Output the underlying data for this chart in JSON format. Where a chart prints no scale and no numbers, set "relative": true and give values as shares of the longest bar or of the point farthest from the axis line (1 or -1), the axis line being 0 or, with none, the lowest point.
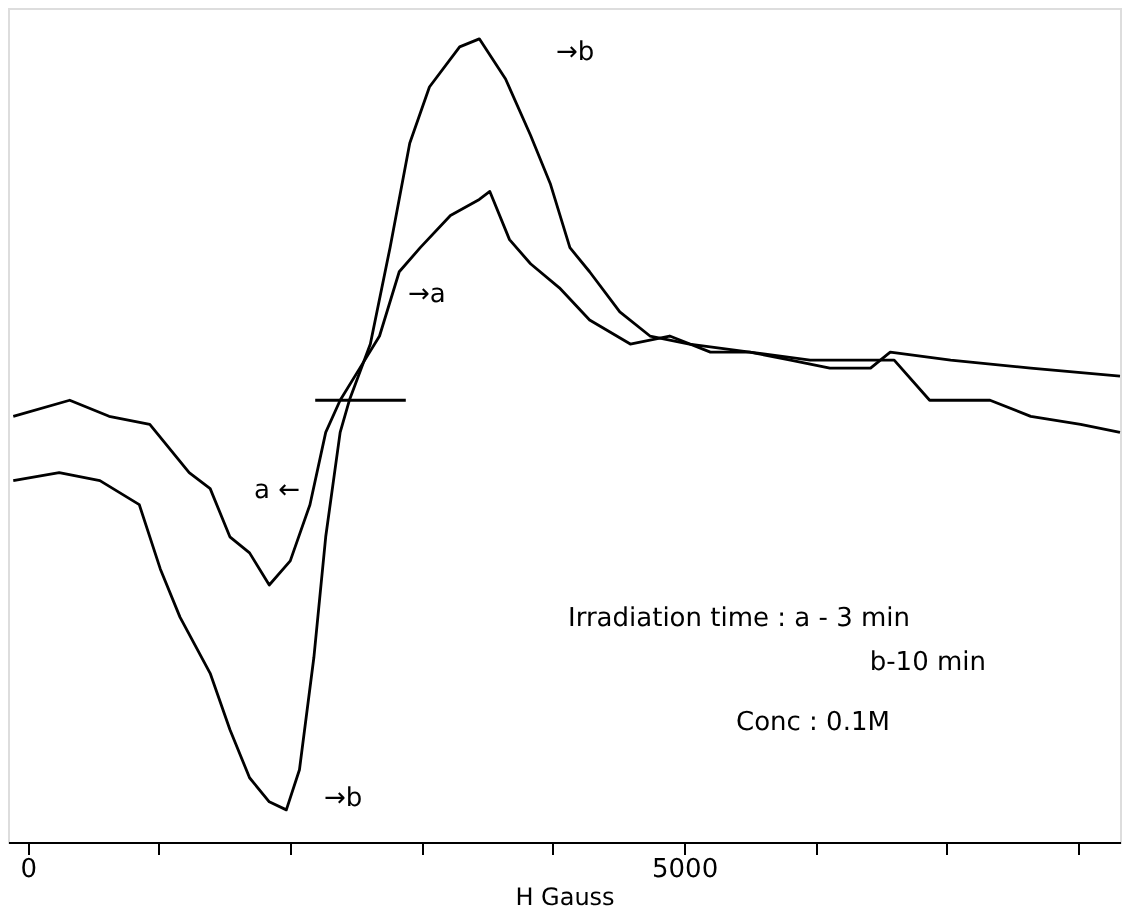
{
  "chart_data": {
    "type": "line",
    "relative": true,
    "xlabel": "H      Gauss",
    "xlim": [
      -150,
      8320
    ],
    "xticks": [
      0,
      {
        "value": 1000,
        "label": null
      },
      {
        "value": 2000,
        "label": null
      },
      {
        "value": 3000,
        "label": null
      },
      {
        "value": 4000,
        "label": null
      },
      5000,
      {
        "value": 6000,
        "label": null
      },
      {
        "value": 7000,
        "label": null
      },
      {
        "value": 8000,
        "label": null
      }
    ],
    "grid": false,
    "marker": "none",
    "line_style": "solid",
    "tick_labels": "x",
    "series": [
      {
        "color": "#000000",
        "x": [
          -110,
          320,
          620,
          930,
          1230,
          1390,
          1540,
          1690,
          1840,
          2000,
          2150,
          2270,
          2380,
          2530,
          2680,
          2830,
          2990,
          3220,
          3440,
          3520,
          3670,
          3830,
          4050,
          4280,
          4590,
          4890,
          5200,
          5500,
          5810,
          6110,
          6420,
          6570,
          7030,
          7640,
          8320
        ],
        "values": [
          0.53,
          0.55,
          0.53,
          0.52,
          0.46,
          0.44,
          0.38,
          0.36,
          0.32,
          0.35,
          0.42,
          0.51,
          0.55,
          0.59,
          0.63,
          0.71,
          0.74,
          0.78,
          0.8,
          0.81,
          0.75,
          0.72,
          0.69,
          0.65,
          0.62,
          0.63,
          0.61,
          0.61,
          0.6,
          0.59,
          0.59,
          0.61,
          0.6,
          0.59,
          0.58
        ]
      },
      {
        "color": "#000000",
        "x": [
          -110,
          240,
          550,
          850,
          1010,
          1160,
          1390,
          1540,
          1690,
          1840,
          1970,
          2070,
          2180,
          2270,
          2380,
          2450,
          2610,
          2760,
          2910,
          3060,
          3290,
          3440,
          3640,
          3830,
          3980,
          4130,
          4280,
          4510,
          4740,
          5040,
          5500,
          5960,
          6420,
          6600,
          6870,
          7330,
          7640,
          8020,
          8320
        ],
        "values": [
          0.45,
          0.46,
          0.45,
          0.42,
          0.34,
          0.28,
          0.21,
          0.14,
          0.08,
          0.05,
          0.04,
          0.09,
          0.23,
          0.38,
          0.51,
          0.55,
          0.62,
          0.74,
          0.87,
          0.94,
          0.99,
          1,
          0.95,
          0.88,
          0.82,
          0.74,
          0.71,
          0.66,
          0.63,
          0.62,
          0.61,
          0.6,
          0.6,
          0.6,
          0.55,
          0.55,
          0.53,
          0.52,
          0.51
        ]
      },
      {
        "color": "#000000",
        "x": [
          2190,
          2880
        ],
        "values": [
          0.55,
          0.55
        ]
      }
    ],
    "annotations": [
      "→b",
      "→a",
      "a ←",
      "→b",
      "Irradiation time : a - 3 min",
      "b-10 min",
      "Conc : 0.1M"
    ]
  }
}
